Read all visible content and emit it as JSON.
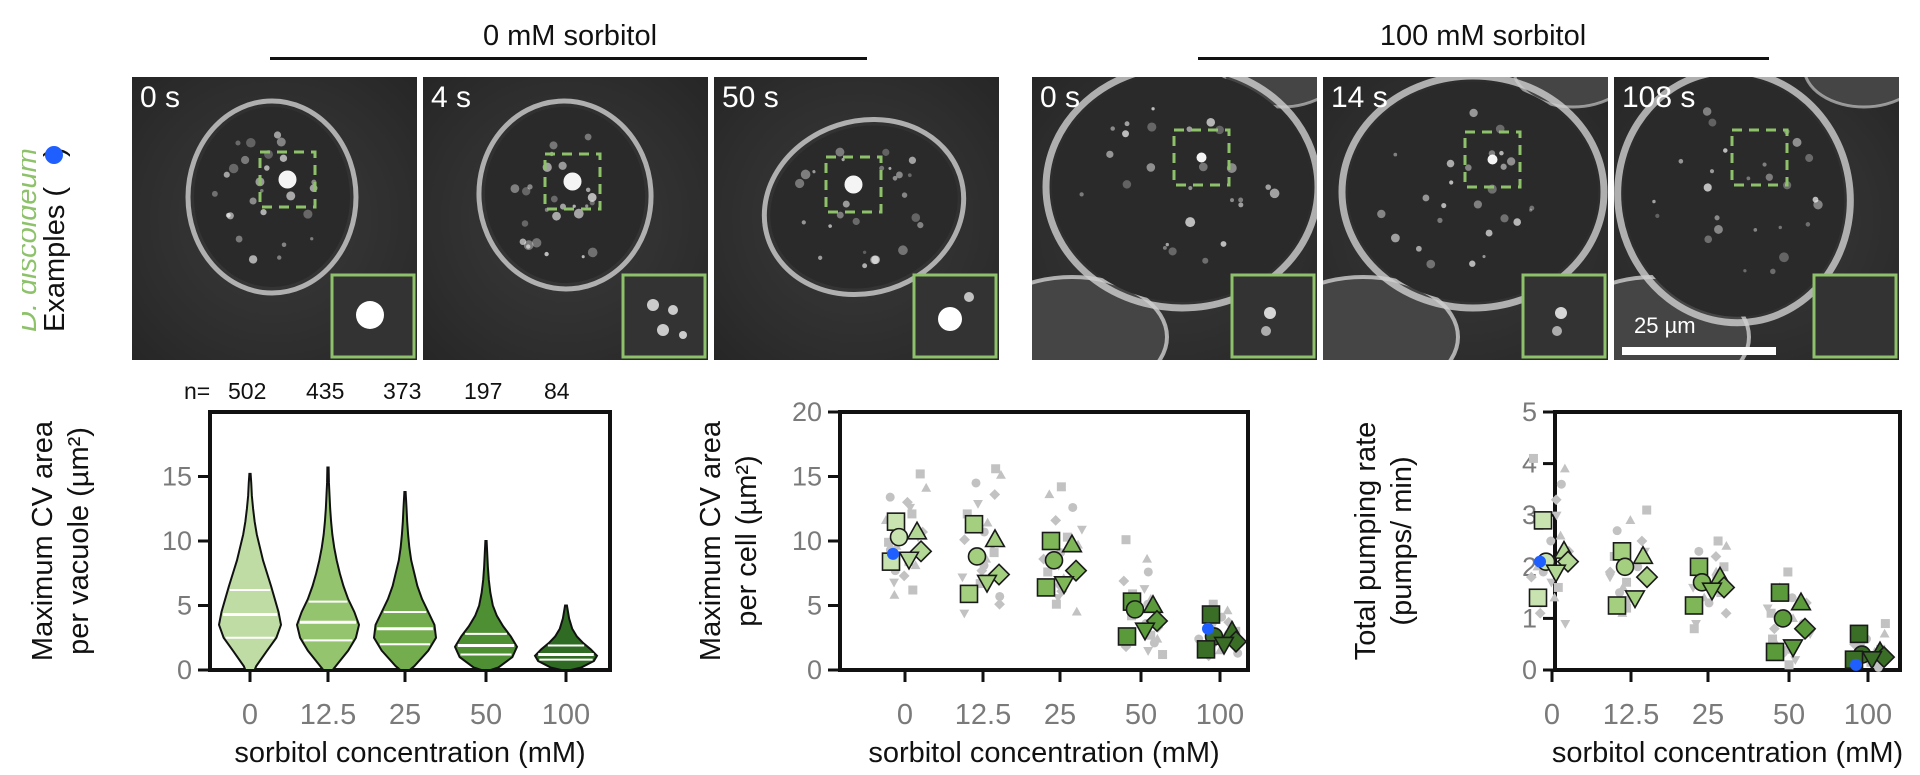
{
  "figure": {
    "conditions": [
      {
        "id": "c0",
        "title": "0 mM sorbitol",
        "times": [
          "0 s",
          "4 s",
          "50 s"
        ]
      },
      {
        "id": "c100",
        "title": "100 mM sorbitol",
        "times": [
          "0 s",
          "14 s",
          "108 s"
        ]
      }
    ],
    "organism": "D. discoideum",
    "examples_label": "Examples (",
    "examples_label_end": ")",
    "marker_color": "#1f5fff",
    "accent_green": "#8dc26a",
    "scale_bar_label": "25 µm",
    "n_label": "n=",
    "n_counts": [
      "502",
      "435",
      "373",
      "197",
      "84"
    ]
  },
  "chart_data": [
    {
      "type": "violin",
      "ylabel": [
        "Maximum CV area",
        "per vacuole (µm²)"
      ],
      "xlabel": "sorbitol concentration (mM)",
      "categories": [
        "0",
        "12.5",
        "25",
        "50",
        "100"
      ],
      "ylim": [
        0,
        20
      ],
      "yticks": [
        0,
        5,
        10,
        15
      ],
      "fills": [
        "#bfdca5",
        "#95c46f",
        "#74ad4e",
        "#4f8f33",
        "#2f6b22"
      ],
      "violins": [
        {
          "n": 502,
          "min": 0,
          "max": 15.2,
          "q1": 2.5,
          "median": 4.3,
          "q3": 6.2,
          "width_profile": [
            [
              0.3,
              0.2
            ],
            [
              1.5,
              0.55
            ],
            [
              2.5,
              0.85
            ],
            [
              3.5,
              1.0
            ],
            [
              4.5,
              0.92
            ],
            [
              5.5,
              0.8
            ],
            [
              6.5,
              0.68
            ],
            [
              7.5,
              0.55
            ],
            [
              8.5,
              0.42
            ],
            [
              9.5,
              0.32
            ],
            [
              10.5,
              0.22
            ],
            [
              11.5,
              0.15
            ],
            [
              12.5,
              0.1
            ],
            [
              13.5,
              0.06
            ],
            [
              14.5,
              0.04
            ],
            [
              15.2,
              0.02
            ]
          ]
        },
        {
          "n": 435,
          "min": 0,
          "max": 15.7,
          "q1": 2.3,
          "median": 3.7,
          "q3": 5.3,
          "width_profile": [
            [
              0.3,
              0.25
            ],
            [
              1.5,
              0.65
            ],
            [
              2.5,
              0.9
            ],
            [
              3.5,
              1.0
            ],
            [
              4.5,
              0.85
            ],
            [
              5.5,
              0.65
            ],
            [
              6.5,
              0.5
            ],
            [
              7.5,
              0.38
            ],
            [
              8.5,
              0.28
            ],
            [
              9.5,
              0.2
            ],
            [
              10.5,
              0.14
            ],
            [
              11.5,
              0.1
            ],
            [
              12.5,
              0.07
            ],
            [
              13.5,
              0.05
            ],
            [
              14.5,
              0.03
            ],
            [
              15.7,
              0.02
            ]
          ]
        },
        {
          "n": 373,
          "min": 0,
          "max": 13.8,
          "q1": 2.0,
          "median": 3.2,
          "q3": 4.5,
          "width_profile": [
            [
              0.3,
              0.3
            ],
            [
              1.5,
              0.75
            ],
            [
              2.5,
              1.0
            ],
            [
              3.5,
              0.95
            ],
            [
              4.5,
              0.75
            ],
            [
              5.5,
              0.55
            ],
            [
              6.5,
              0.4
            ],
            [
              7.5,
              0.3
            ],
            [
              8.5,
              0.2
            ],
            [
              9.5,
              0.14
            ],
            [
              10.5,
              0.1
            ],
            [
              11.5,
              0.07
            ],
            [
              12.5,
              0.05
            ],
            [
              13.8,
              0.02
            ]
          ]
        },
        {
          "n": 197,
          "min": 0,
          "max": 10.0,
          "q1": 1.2,
          "median": 1.9,
          "q3": 2.8,
          "width_profile": [
            [
              0.2,
              0.4
            ],
            [
              1.0,
              0.85
            ],
            [
              1.8,
              1.0
            ],
            [
              2.6,
              0.8
            ],
            [
              3.4,
              0.55
            ],
            [
              4.2,
              0.35
            ],
            [
              5.0,
              0.22
            ],
            [
              6.0,
              0.14
            ],
            [
              7.0,
              0.09
            ],
            [
              8.0,
              0.06
            ],
            [
              9.0,
              0.04
            ],
            [
              10.0,
              0.02
            ]
          ]
        },
        {
          "n": 84,
          "min": 0,
          "max": 5.0,
          "q1": 0.8,
          "median": 1.2,
          "q3": 1.9,
          "width_profile": [
            [
              0.2,
              0.5
            ],
            [
              0.7,
              0.9
            ],
            [
              1.1,
              1.0
            ],
            [
              1.6,
              0.8
            ],
            [
              2.1,
              0.55
            ],
            [
              2.6,
              0.35
            ],
            [
              3.2,
              0.2
            ],
            [
              4.0,
              0.1
            ],
            [
              5.0,
              0.03
            ]
          ]
        }
      ]
    },
    {
      "type": "scatter",
      "ylabel": [
        "Maximum CV area",
        "per cell (µm²)"
      ],
      "xlabel": "sorbitol concentration (mM)",
      "categories": [
        "0",
        "12.5",
        "25",
        "50",
        "100"
      ],
      "ylim": [
        0,
        20
      ],
      "yticks": [
        0,
        5,
        10,
        15,
        20
      ],
      "cell_values": [
        [
          15.2,
          14.1,
          13.4,
          13.0,
          12.6,
          12.1,
          11.6,
          11.1,
          10.7,
          10.3,
          9.9,
          9.6,
          9.3,
          9.0,
          8.7,
          8.4,
          8.1,
          7.7,
          7.3,
          6.8,
          6.2,
          5.8
        ],
        [
          15.6,
          15.1,
          14.5,
          13.6,
          12.9,
          12.1,
          11.4,
          10.7,
          10.1,
          9.6,
          9.1,
          8.6,
          8.1,
          7.7,
          7.2,
          6.7,
          6.2,
          5.7,
          5.1,
          4.4
        ],
        [
          14.2,
          13.6,
          12.6,
          11.6,
          10.9,
          10.3,
          9.7,
          9.1,
          8.6,
          8.1,
          7.6,
          7.1,
          6.6,
          6.1,
          5.6,
          5.1,
          4.5
        ],
        [
          10.1,
          8.6,
          7.6,
          6.9,
          6.3,
          5.9,
          5.5,
          5.1,
          4.8,
          4.5,
          4.2,
          3.9,
          3.6,
          3.3,
          3.0,
          2.7,
          2.4,
          2.1,
          1.8,
          1.5,
          1.2
        ],
        [
          5.1,
          4.6,
          4.1,
          3.7,
          3.3,
          3.0,
          2.7,
          2.4,
          2.1,
          1.9,
          1.7,
          1.5,
          1.3,
          1.1
        ]
      ],
      "replicate_means": [
        [
          11.5,
          10.7,
          10.3,
          9.2,
          8.6,
          8.4
        ],
        [
          11.3,
          10.1,
          8.8,
          7.4,
          6.8,
          5.9
        ],
        [
          10.0,
          9.7,
          8.5,
          7.7,
          6.7,
          6.4
        ],
        [
          5.3,
          5.0,
          4.7,
          3.8,
          3.1,
          2.6
        ],
        [
          4.3,
          3.0,
          2.6,
          2.2,
          2.0,
          1.6
        ]
      ],
      "example_values": [
        9.0,
        null,
        null,
        null,
        3.2
      ]
    },
    {
      "type": "scatter",
      "ylabel": [
        "Total pumping rate",
        "(pumps/ min)"
      ],
      "xlabel": "sorbitol concentration (mM)",
      "categories": [
        "0",
        "12.5",
        "25",
        "50",
        "100"
      ],
      "ylim": [
        0,
        5
      ],
      "yticks": [
        0,
        1,
        2,
        3,
        4,
        5
      ],
      "cell_values": [
        [
          4.1,
          3.9,
          3.6,
          3.3,
          3.0,
          2.8,
          2.6,
          2.5,
          2.3,
          2.2,
          2.1,
          2.0,
          1.9,
          1.8,
          1.7,
          1.6,
          1.4,
          1.3,
          1.1,
          0.9
        ],
        [
          3.1,
          2.9,
          2.7,
          2.5,
          2.3,
          2.2,
          2.1,
          2.0,
          1.9,
          1.8,
          1.7,
          1.6,
          1.5,
          1.4,
          1.3,
          1.2,
          1.1
        ],
        [
          2.5,
          2.4,
          2.3,
          2.2,
          2.1,
          2.0,
          1.9,
          1.8,
          1.7,
          1.6,
          1.5,
          1.4,
          1.3,
          1.1,
          0.9,
          0.8
        ],
        [
          1.9,
          1.6,
          1.4,
          1.3,
          1.2,
          1.1,
          1.0,
          0.9,
          0.8,
          0.7,
          0.6,
          0.5,
          0.4,
          0.3,
          0.2,
          0.1
        ],
        [
          0.9,
          0.7,
          0.6,
          0.5,
          0.45,
          0.4,
          0.35,
          0.3,
          0.25,
          0.2,
          0.15,
          0.1,
          0.05
        ]
      ],
      "replicate_means": [
        [
          2.9,
          2.3,
          2.1,
          2.1,
          1.9,
          1.4
        ],
        [
          2.3,
          2.2,
          2.0,
          1.8,
          1.4,
          1.25
        ],
        [
          2.0,
          1.8,
          1.7,
          1.6,
          1.55,
          1.25
        ],
        [
          1.5,
          1.3,
          1.0,
          0.8,
          0.45,
          0.35
        ],
        [
          0.7,
          0.35,
          0.3,
          0.25,
          0.22,
          0.2
        ]
      ],
      "example_values": [
        2.1,
        null,
        null,
        null,
        0.1
      ]
    }
  ]
}
